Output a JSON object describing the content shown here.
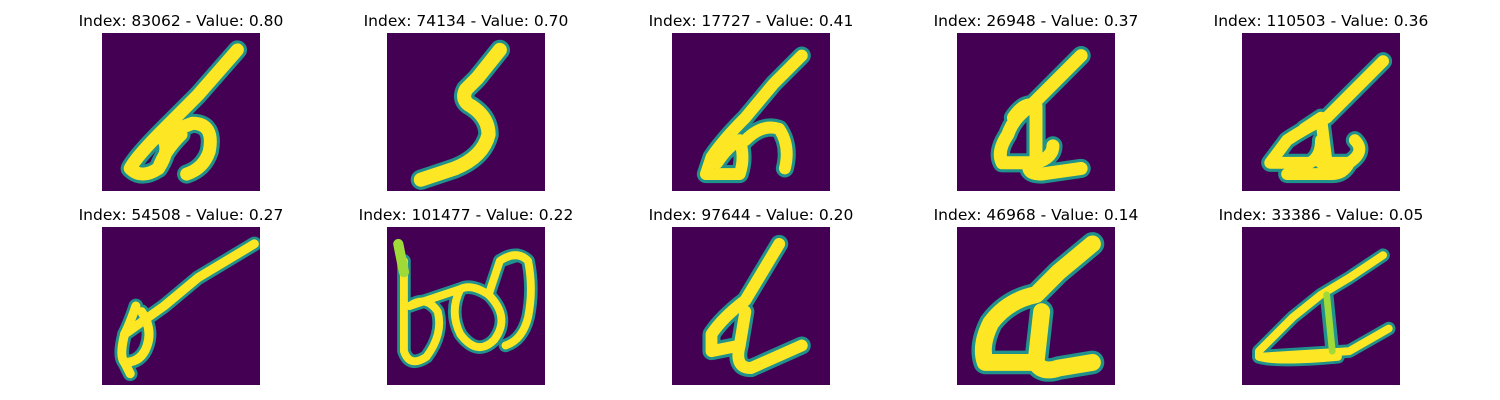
{
  "figure": {
    "colors": {
      "background": "#440154",
      "stroke_core": "#fde725",
      "stroke_mid": "#a0da39",
      "stroke_edge": "#21918c"
    },
    "panels": [
      {
        "index": "83062",
        "value": "0.80",
        "title": "Index: 83062 - Value: 0.80",
        "glyph": "g0"
      },
      {
        "index": "74134",
        "value": "0.70",
        "title": "Index: 74134 - Value: 0.70",
        "glyph": "g1"
      },
      {
        "index": "17727",
        "value": "0.41",
        "title": "Index: 17727 - Value: 0.41",
        "glyph": "g2"
      },
      {
        "index": "26948",
        "value": "0.37",
        "title": "Index: 26948 - Value: 0.37",
        "glyph": "g3"
      },
      {
        "index": "110503",
        "value": "0.36",
        "title": "Index: 110503 - Value: 0.36",
        "glyph": "g4"
      },
      {
        "index": "54508",
        "value": "0.27",
        "title": "Index: 54508 - Value: 0.27",
        "glyph": "g5"
      },
      {
        "index": "101477",
        "value": "0.22",
        "title": "Index: 101477 - Value: 0.22",
        "glyph": "g6"
      },
      {
        "index": "97644",
        "value": "0.20",
        "title": "Index: 97644 - Value: 0.20",
        "glyph": "g7"
      },
      {
        "index": "46968",
        "value": "0.14",
        "title": "Index: 46968 - Value: 0.14",
        "glyph": "g8"
      },
      {
        "index": "33386",
        "value": "0.05",
        "title": "Index: 33386 - Value: 0.05",
        "glyph": "g9"
      }
    ]
  }
}
